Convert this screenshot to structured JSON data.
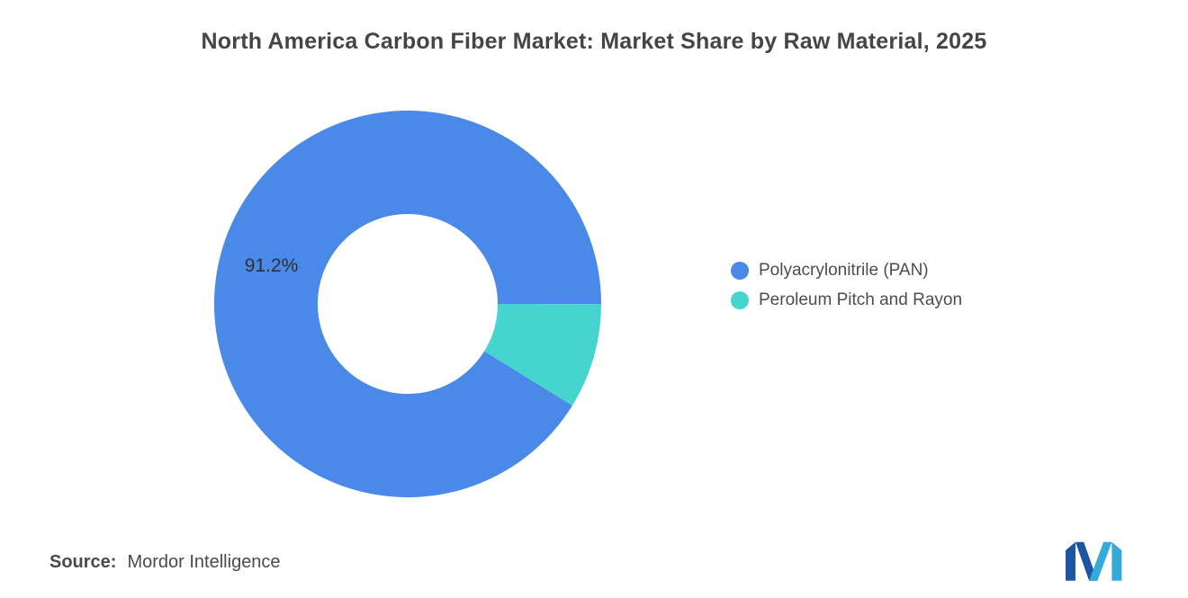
{
  "title": "North America Carbon Fiber Market: Market Share by Raw Material, 2025",
  "chart_data": {
    "type": "pie",
    "subtype": "donut",
    "title": "North America Carbon Fiber Market: Market Share by Raw Material, 2025",
    "series": [
      {
        "name": "Polyacrylonitrile (PAN)",
        "value": 91.2,
        "color": "#4A89E8",
        "label": "91.2%"
      },
      {
        "name": "Peroleum Pitch and Rayon",
        "value": 8.8,
        "color": "#45D4CE",
        "label": ""
      }
    ],
    "start_angle_deg": 121.7,
    "inner_radius_ratio": 0.465,
    "legend_position": "right",
    "labels_shown": [
      "91.2%"
    ]
  },
  "footer": {
    "source_label": "Source:",
    "source_value": "Mordor Intelligence"
  },
  "logo": {
    "name": "mordor-intelligence-logo",
    "color_dark": "#1D55A4",
    "color_light": "#33A9DC"
  }
}
